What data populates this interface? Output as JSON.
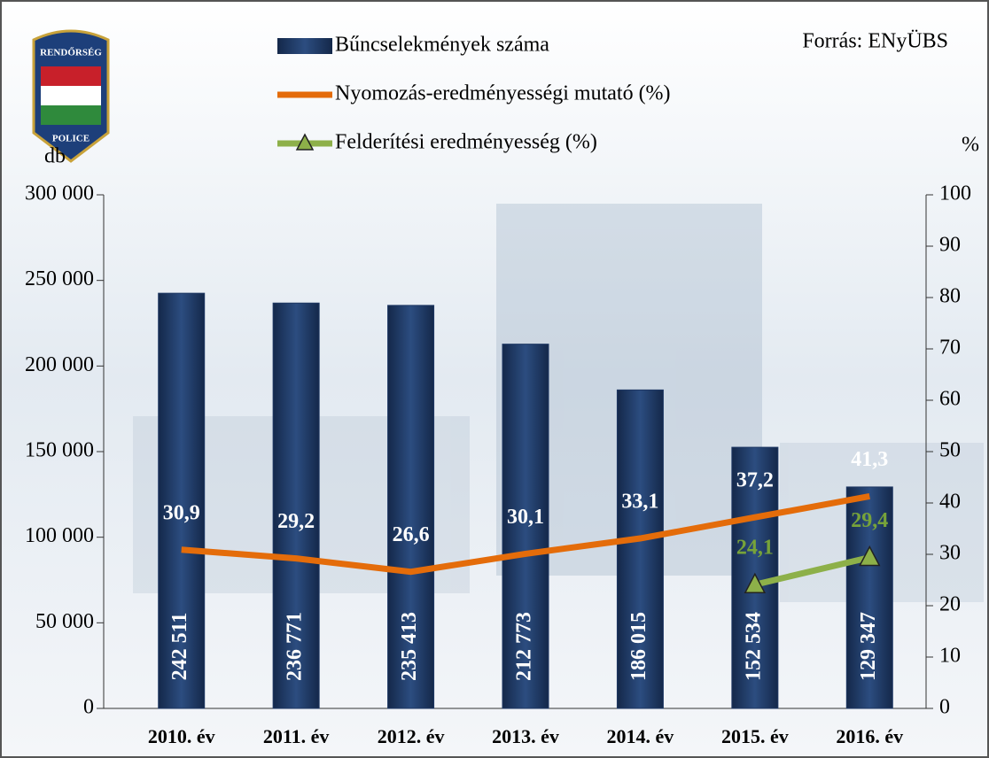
{
  "chart_data": {
    "type": "bar",
    "source": "Forrás: ENyÜBS",
    "logo": {
      "top": "RENDŐRSÉG",
      "bottom": "POLICE"
    },
    "y_label": "db",
    "y2_label": "%",
    "categories": [
      "2010. év",
      "2011. év",
      "2012. év",
      "2013. év",
      "2014. év",
      "2015. év",
      "2016. év"
    ],
    "series": [
      {
        "name": "Bűncselekmények száma",
        "type": "bar",
        "axis": "y",
        "color": "#1f3864",
        "label_color": "#ffffff",
        "values": [
          242511,
          236771,
          235413,
          212773,
          186015,
          152534,
          129347
        ],
        "value_labels": [
          "242 511",
          "236 771",
          "235 413",
          "212 773",
          "186 015",
          "152 534",
          "129 347"
        ]
      },
      {
        "name": "Nyomozás-eredményességi mutató (%)",
        "type": "line",
        "axis": "y2",
        "color": "#e46c0a",
        "label_color": "#ffffff",
        "values": [
          30.9,
          29.2,
          26.6,
          30.1,
          33.1,
          37.2,
          41.3
        ],
        "value_labels": [
          "30,9",
          "29,2",
          "26,6",
          "30,1",
          "33,1",
          "37,2",
          "41,3"
        ]
      },
      {
        "name": "Felderítési eredményesség (%)",
        "type": "line",
        "axis": "y2",
        "color": "#8db049",
        "label_color": "#77a33a",
        "marker": "triangle",
        "values": [
          null,
          null,
          null,
          null,
          null,
          24.1,
          29.4
        ],
        "value_labels": [
          null,
          null,
          null,
          null,
          null,
          "24,1",
          "29,4"
        ]
      }
    ],
    "ylim": [
      0,
      300000
    ],
    "yticks": [
      0,
      {
        "value": 50000,
        "label": "50 000"
      },
      {
        "value": 100000,
        "label": "100 000"
      },
      {
        "value": 150000,
        "label": "150 000"
      },
      {
        "value": 200000,
        "label": "200 000"
      },
      {
        "value": 250000,
        "label": "250 000"
      },
      {
        "value": 300000,
        "label": "300 000"
      }
    ],
    "y2lim": [
      0,
      100
    ],
    "y2ticks": [
      0,
      10,
      20,
      30,
      40,
      50,
      60,
      70,
      80,
      90,
      100
    ]
  }
}
